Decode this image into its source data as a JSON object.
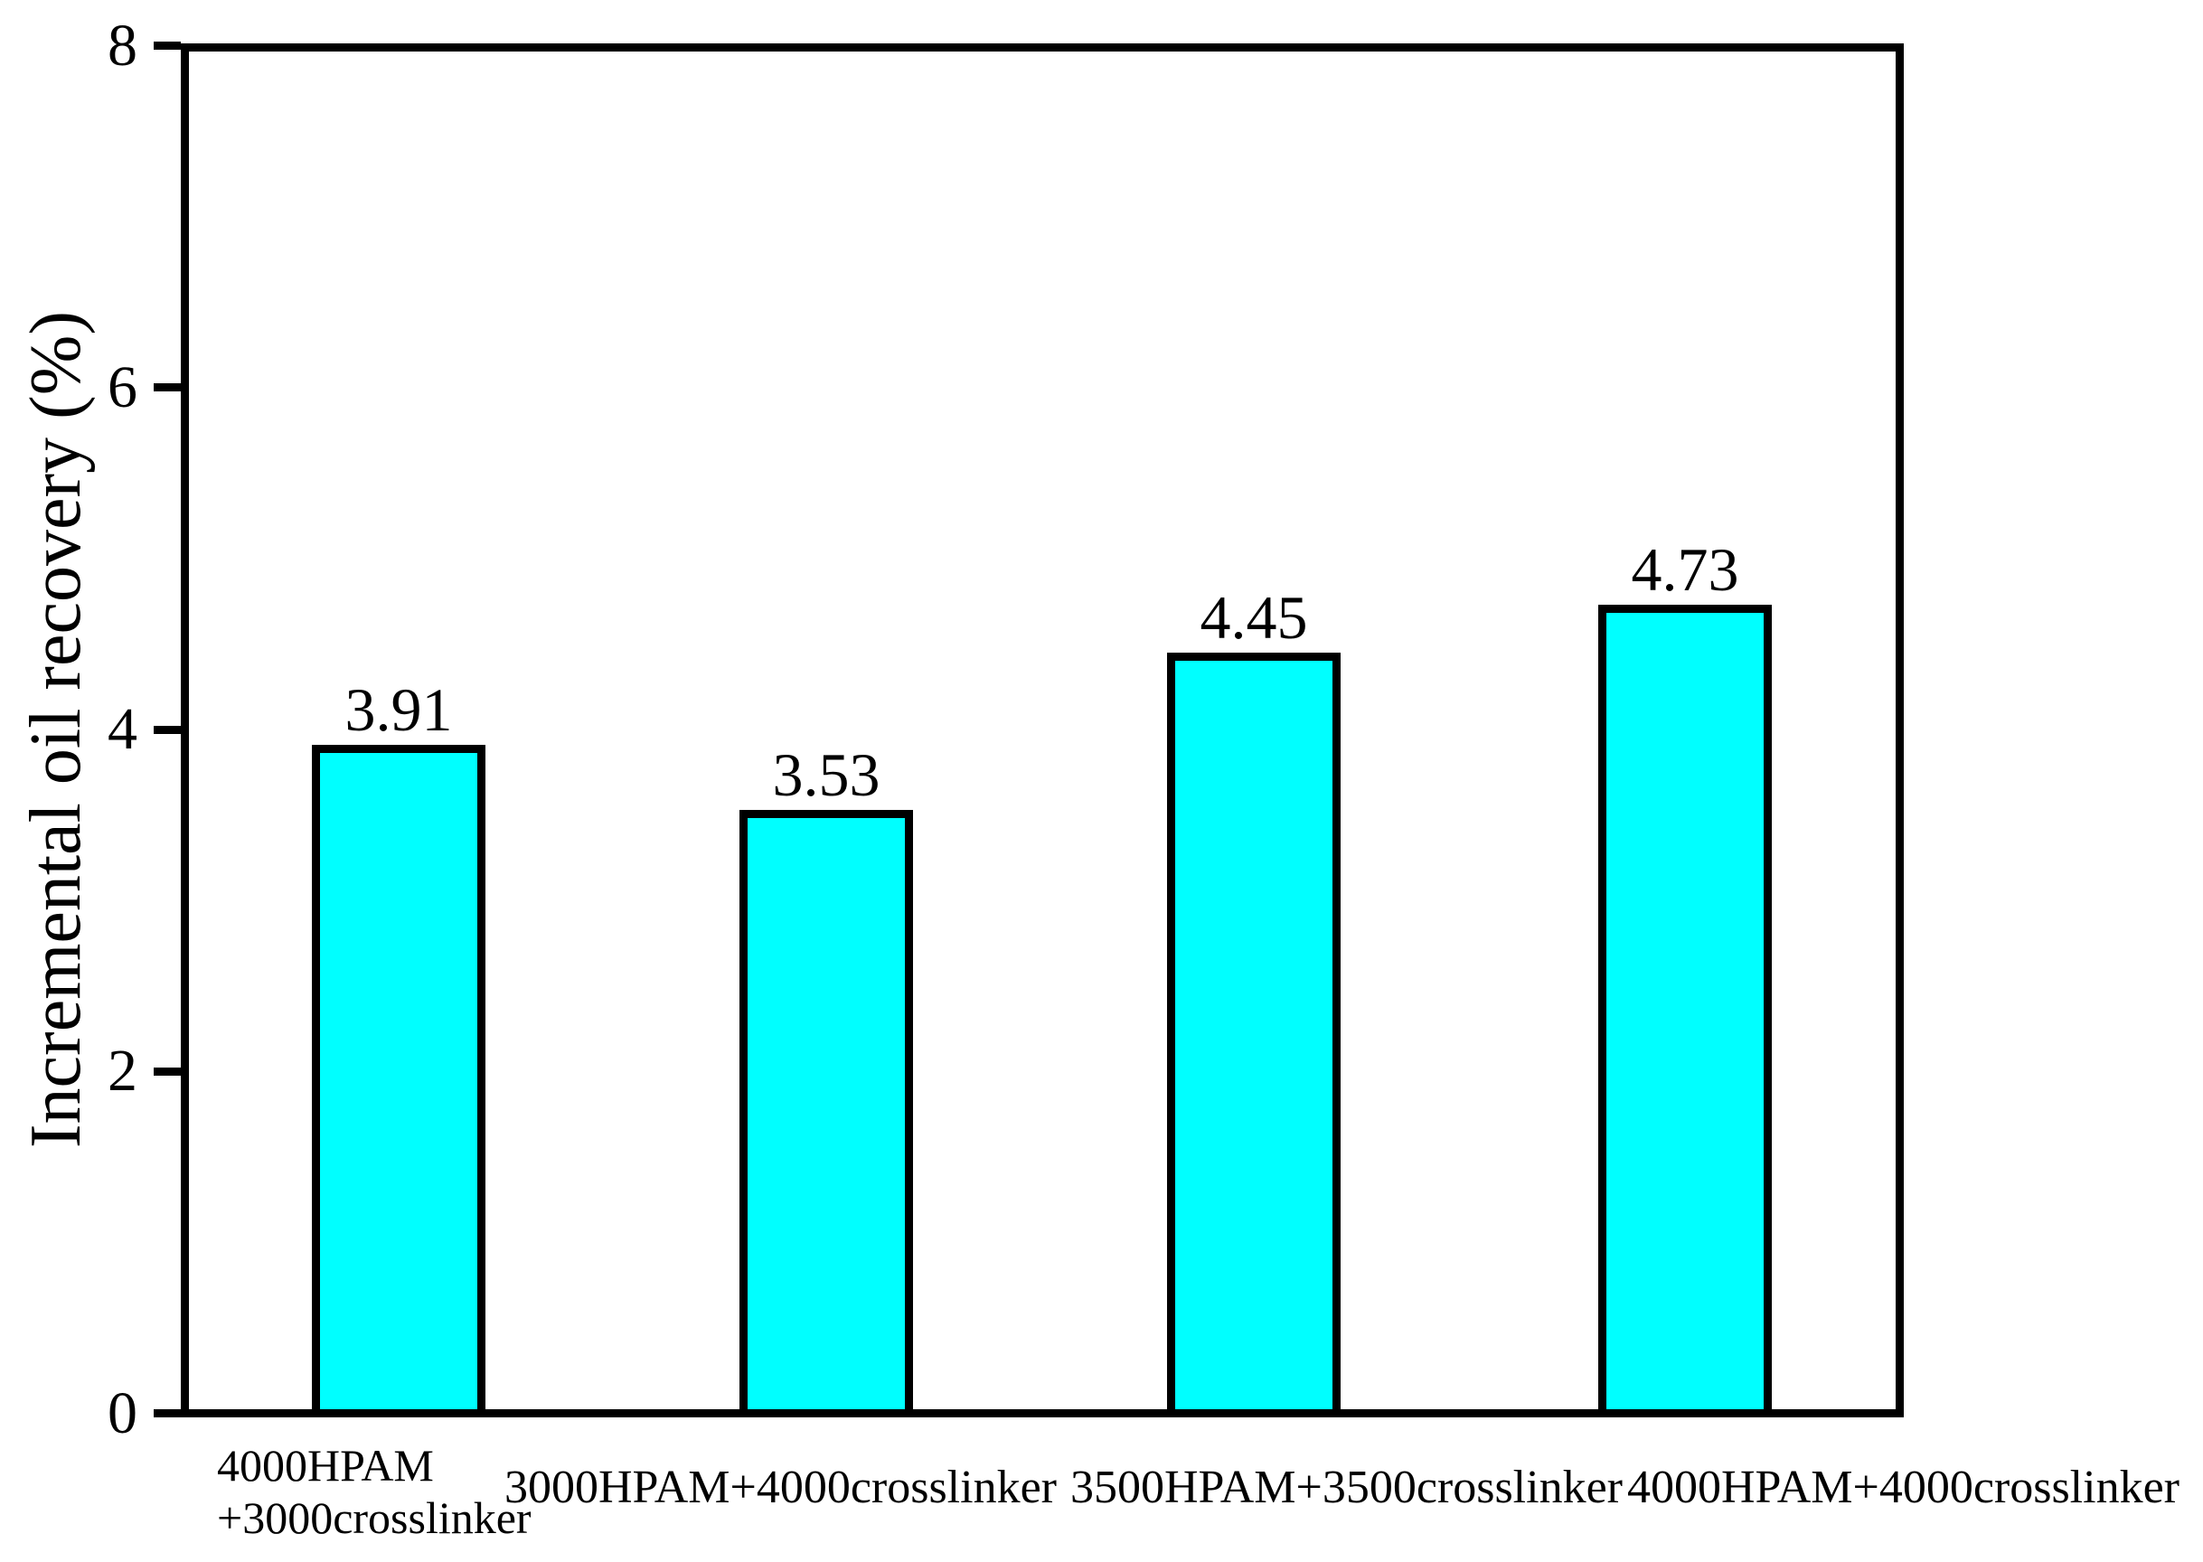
{
  "chart_data": {
    "type": "bar",
    "title": "",
    "ylabel": "Incremental oil recovery (%)",
    "xlabel": "",
    "categories": [
      "4000HPAM\n+3000crosslinker",
      "3000HPAM+4000crosslinker",
      "3500HPAM+3500crosslinker",
      "4000HPAM+4000crosslinker"
    ],
    "values": [
      3.91,
      3.53,
      4.45,
      4.73
    ],
    "bar_value_labels": [
      "3.91",
      "3.53",
      "4.45",
      "4.73"
    ],
    "ylim": [
      0,
      8
    ],
    "yticks": [
      0,
      2,
      4,
      6,
      8
    ],
    "ytick_labels": [
      "0",
      "2",
      "4",
      "6",
      "8"
    ],
    "grid": false,
    "legend_position": "none",
    "colors": {
      "bar_fill": "#00FFFF",
      "bar_border": "#000000",
      "axis": "#000000",
      "text": "#000000",
      "background": "#FFFFFF"
    }
  }
}
